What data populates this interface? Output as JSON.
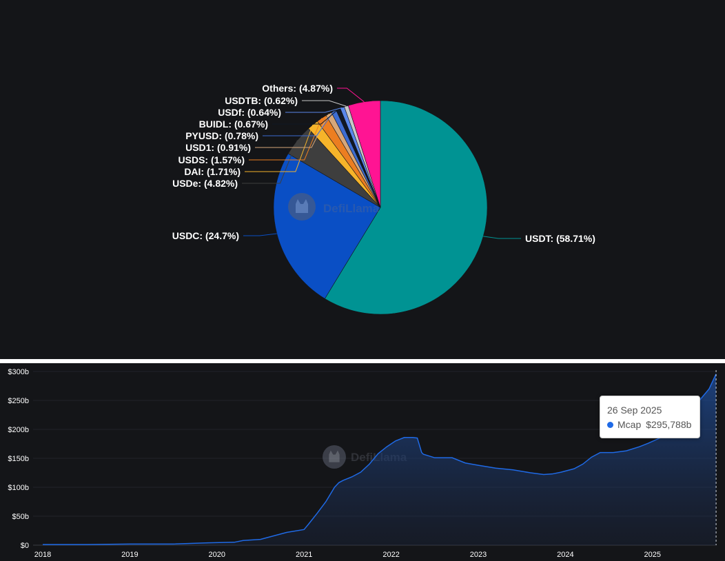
{
  "chart_data": [
    {
      "type": "pie",
      "watermark": "DefiLlama",
      "slices": [
        {
          "name": "USDT",
          "value": 58.71,
          "label": "USDT: (58.71%)",
          "color": "#009393"
        },
        {
          "name": "USDC",
          "value": 24.7,
          "label": "USDC: (24.7%)",
          "color": "#0a4fc5"
        },
        {
          "name": "USDe",
          "value": 4.82,
          "label": "USDe: (4.82%)",
          "color": "#3e3e3e"
        },
        {
          "name": "DAI",
          "value": 1.71,
          "label": "DAI: (1.71%)",
          "color": "#f6b42a"
        },
        {
          "name": "USDS",
          "value": 1.57,
          "label": "USDS: (1.57%)",
          "color": "#ec7e21"
        },
        {
          "name": "USD1",
          "value": 0.91,
          "label": "USD1: (0.91%)",
          "color": "#d6a77a"
        },
        {
          "name": "PYUSD",
          "value": 0.78,
          "label": "PYUSD: (0.78%)",
          "color": "#3d6cd1"
        },
        {
          "name": "BUIDL",
          "value": 0.67,
          "label": "BUIDL: (0.67%)",
          "color": "#101825"
        },
        {
          "name": "USDf",
          "value": 0.64,
          "label": "USDf: (0.64%)",
          "color": "#5a88ea"
        },
        {
          "name": "USDTB",
          "value": 0.62,
          "label": "USDTB: (0.62%)",
          "color": "#c9c9c9"
        },
        {
          "name": "Others",
          "value": 4.87,
          "label": "Others: (4.87%)",
          "color": "#ff1493"
        }
      ]
    },
    {
      "type": "area",
      "watermark": "DefiLlama",
      "series": [
        {
          "name": "Mcap",
          "color": "#1f6ae6",
          "x": [
            2018.0,
            2018.5,
            2019.0,
            2019.5,
            2019.9,
            2020.2,
            2020.3,
            2020.5,
            2020.6,
            2020.8,
            2021.0,
            2021.05,
            2021.15,
            2021.25,
            2021.35,
            2021.4,
            2021.45,
            2021.55,
            2021.65,
            2021.75,
            2021.85,
            2021.95,
            2022.05,
            2022.15,
            2022.25,
            2022.3,
            2022.35,
            2022.37,
            2022.5,
            2022.7,
            2022.85,
            2023.0,
            2023.2,
            2023.4,
            2023.6,
            2023.75,
            2023.85,
            2023.95,
            2024.1,
            2024.2,
            2024.3,
            2024.4,
            2024.55,
            2024.7,
            2024.85,
            2024.95,
            2025.1,
            2025.25,
            2025.4,
            2025.55,
            2025.65,
            2025.73
          ],
          "values": [
            1,
            1,
            2,
            2,
            4,
            5,
            8,
            10,
            14,
            22,
            27,
            36,
            55,
            75,
            100,
            108,
            112,
            118,
            126,
            140,
            158,
            170,
            180,
            186,
            186,
            185,
            160,
            157,
            151,
            151,
            142,
            138,
            133,
            130,
            125,
            122,
            123,
            126,
            132,
            140,
            152,
            160,
            160,
            163,
            170,
            176,
            186,
            205,
            232,
            252,
            270,
            295.788
          ]
        }
      ],
      "x_ticks": [
        "2018",
        "2019",
        "2020",
        "2021",
        "2022",
        "2023",
        "2024",
        "2025"
      ],
      "y_ticks": [
        "$0",
        "$50b",
        "$100b",
        "$150b",
        "$200b",
        "$250b",
        "$300b"
      ],
      "ylim": [
        0,
        300
      ],
      "tooltip": {
        "date": "26 Sep 2025",
        "series": "Mcap",
        "value": "$295,788b"
      }
    }
  ]
}
